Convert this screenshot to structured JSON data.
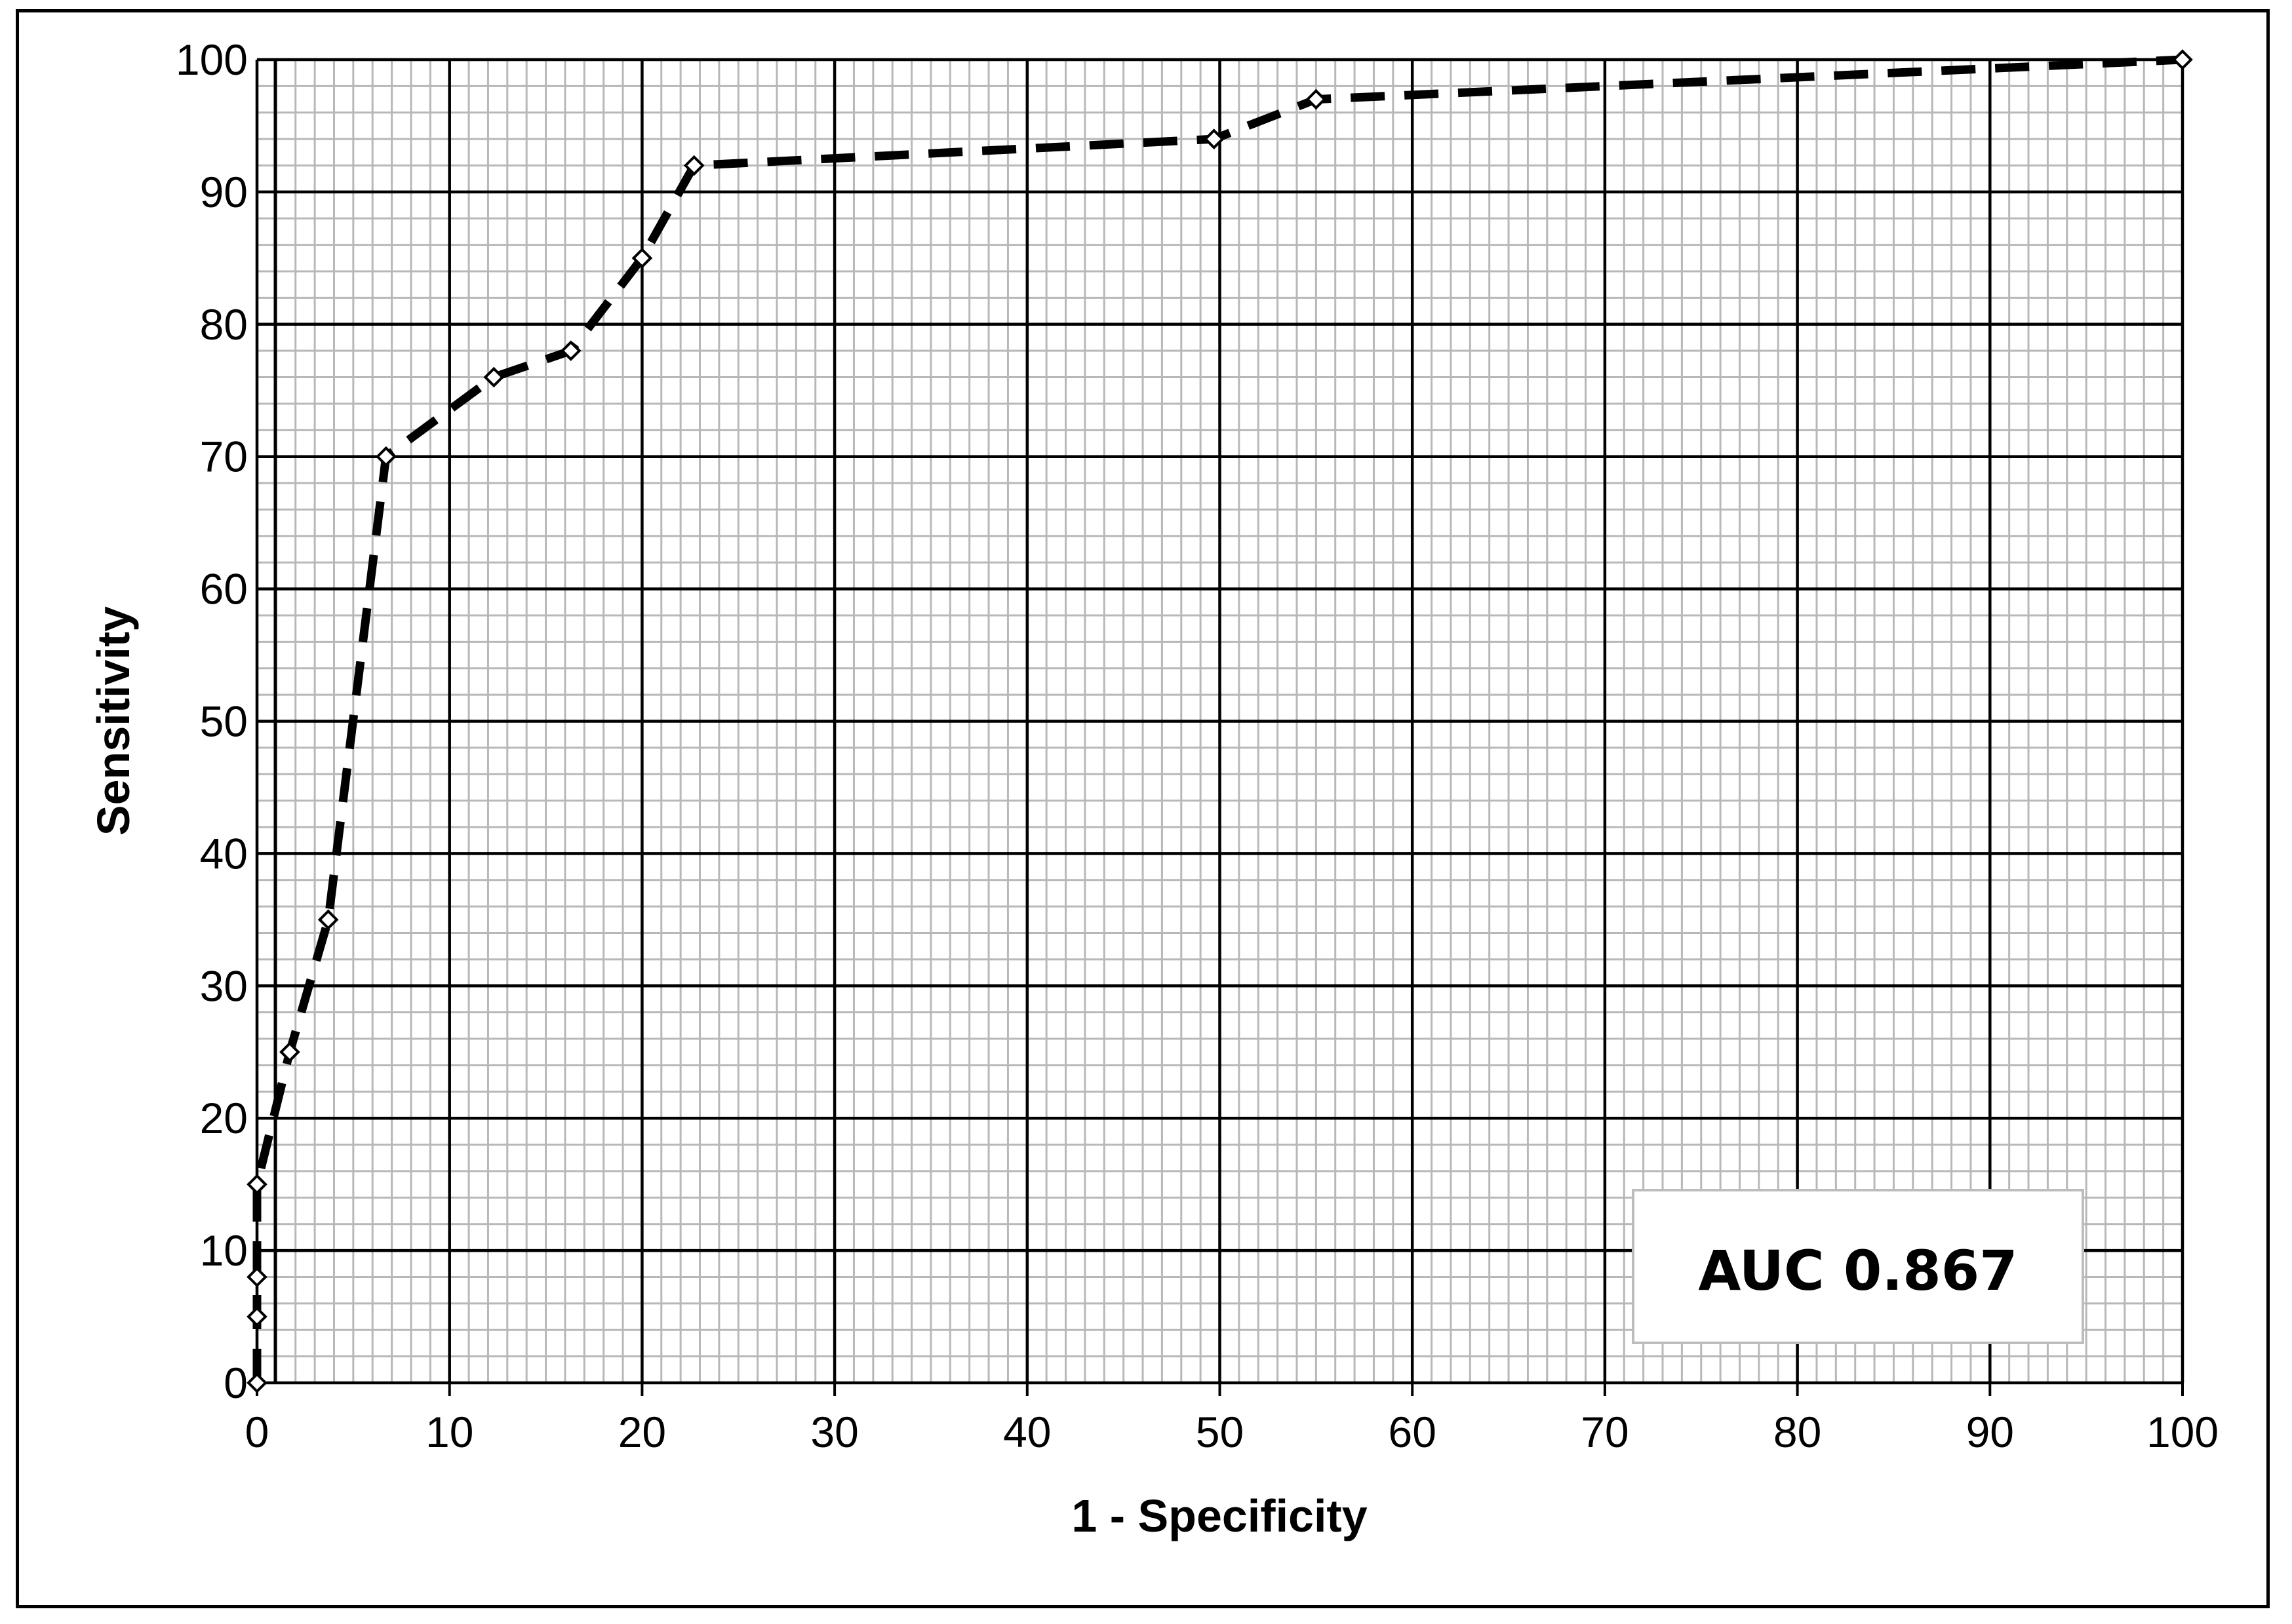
{
  "chart_data": {
    "type": "line",
    "title": "",
    "xlabel": "1 - Specificity",
    "ylabel": "Sensitivity",
    "xlim": [
      0,
      100
    ],
    "ylim": [
      0,
      100
    ],
    "x_ticks": [
      0,
      10,
      20,
      30,
      40,
      50,
      60,
      70,
      80,
      90,
      100
    ],
    "y_ticks": [
      0,
      10,
      20,
      30,
      40,
      50,
      60,
      70,
      80,
      90,
      100
    ],
    "major_grid": true,
    "minor_grid": true,
    "legend": "none",
    "series": [
      {
        "line_style": "dashed",
        "marker": "open-diamond",
        "color": "#000000",
        "points": [
          {
            "x": 0,
            "y": 0
          },
          {
            "x": 0,
            "y": 5
          },
          {
            "x": 0,
            "y": 8
          },
          {
            "x": 0,
            "y": 15
          },
          {
            "x": 1.7,
            "y": 25
          },
          {
            "x": 3.7,
            "y": 35
          },
          {
            "x": 6.7,
            "y": 70
          },
          {
            "x": 12.3,
            "y": 76
          },
          {
            "x": 16.3,
            "y": 78
          },
          {
            "x": 20,
            "y": 85
          },
          {
            "x": 22.7,
            "y": 92
          },
          {
            "x": 49.7,
            "y": 94
          },
          {
            "x": 55,
            "y": 97
          },
          {
            "x": 100,
            "y": 100
          }
        ]
      }
    ],
    "annotation": {
      "text": "AUC 0.867",
      "position": "bottom-right"
    }
  }
}
